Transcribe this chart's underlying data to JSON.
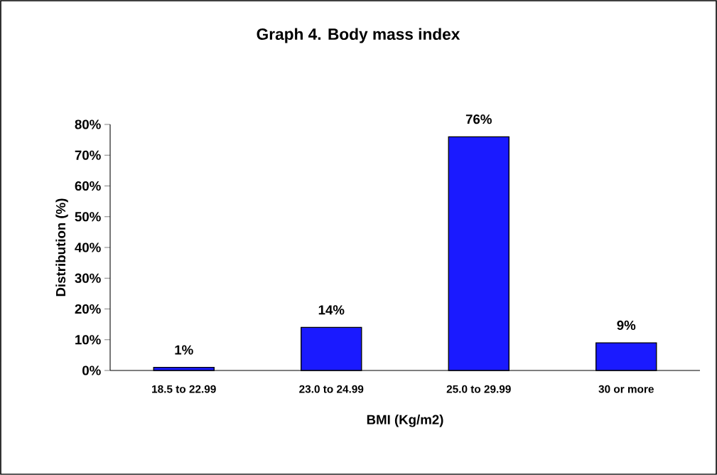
{
  "chart_data": {
    "type": "bar",
    "title": "Graph 4. Body mass index",
    "xlabel": "BMI (Kg/m2)",
    "ylabel": "Distribution (%)",
    "categories": [
      "18.5 to 22.99",
      "23.0 to 24.99",
      "25.0 to 29.99",
      "30 or more"
    ],
    "values": [
      1,
      14,
      76,
      9
    ],
    "value_labels": [
      "1%",
      "14%",
      "76%",
      "9%"
    ],
    "color": "#1a1aff",
    "ylim": [
      0,
      80
    ],
    "yticks": [
      {
        "value": 0,
        "label": "0%"
      },
      {
        "value": 10,
        "label": "10%"
      },
      {
        "value": 20,
        "label": "20%"
      },
      {
        "value": 30,
        "label": "30%"
      },
      {
        "value": 40,
        "label": "40%"
      },
      {
        "value": 50,
        "label": "50%"
      },
      {
        "value": 60,
        "label": "60%"
      },
      {
        "value": 70,
        "label": "70%"
      },
      {
        "value": 80,
        "label": "80%"
      }
    ],
    "grid": false
  }
}
